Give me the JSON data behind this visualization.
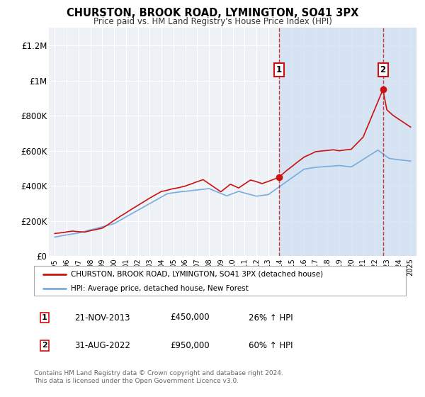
{
  "title": "CHURSTON, BROOK ROAD, LYMINGTON, SO41 3PX",
  "subtitle": "Price paid vs. HM Land Registry's House Price Index (HPI)",
  "ylabel_ticks": [
    "£0",
    "£200K",
    "£400K",
    "£600K",
    "£800K",
    "£1M",
    "£1.2M"
  ],
  "ytick_values": [
    0,
    200000,
    400000,
    600000,
    800000,
    1000000,
    1200000
  ],
  "ylim": [
    0,
    1300000
  ],
  "xlim": [
    1994.5,
    2025.5
  ],
  "xticks": [
    1995,
    1996,
    1997,
    1998,
    1999,
    2000,
    2001,
    2002,
    2003,
    2004,
    2005,
    2006,
    2007,
    2008,
    2009,
    2010,
    2011,
    2012,
    2013,
    2014,
    2015,
    2016,
    2017,
    2018,
    2019,
    2020,
    2021,
    2022,
    2023,
    2024,
    2025
  ],
  "plot_bg_color": "#eef2f7",
  "grid_color": "#ffffff",
  "house_color": "#cc1111",
  "hpi_color": "#7aabdd",
  "shade_color": "#ccddf0",
  "sale1_year": 2013.9,
  "sale1_price": 450000,
  "sale2_year": 2022.67,
  "sale2_price": 950000,
  "legend_house": "CHURSTON, BROOK ROAD, LYMINGTON, SO41 3PX (detached house)",
  "legend_hpi": "HPI: Average price, detached house, New Forest",
  "sale1_date": "21-NOV-2013",
  "sale1_amount": "£450,000",
  "sale1_pct": "26% ↑ HPI",
  "sale2_date": "31-AUG-2022",
  "sale2_amount": "£950,000",
  "sale2_pct": "60% ↑ HPI",
  "footnote1": "Contains HM Land Registry data © Crown copyright and database right 2024.",
  "footnote2": "This data is licensed under the Open Government Licence v3.0."
}
